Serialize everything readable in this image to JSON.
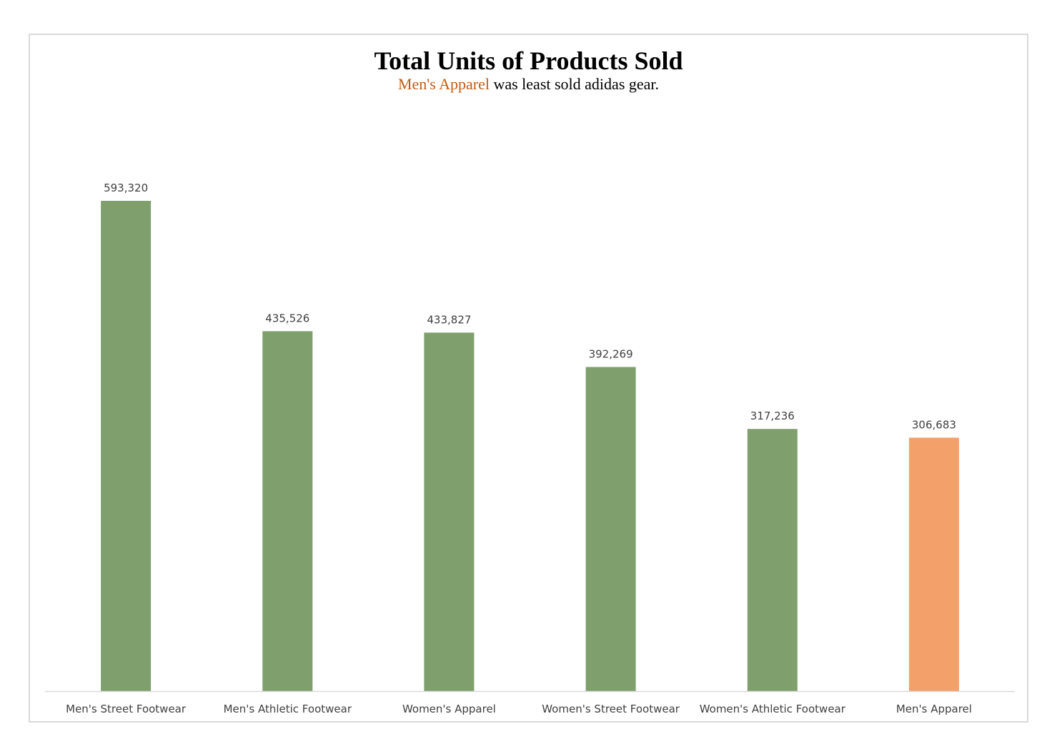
{
  "chart_data": {
    "type": "bar",
    "title": "Total Units of Products Sold",
    "subtitle": {
      "highlight": "Men's Apparel",
      "rest": " was least sold adidas gear."
    },
    "categories": [
      "Men's Street Footwear",
      "Men's Athletic Footwear",
      "Women's Apparel",
      "Women's Street Footwear",
      "Women's Athletic Footwear",
      "Men's Apparel"
    ],
    "values": [
      593320,
      435526,
      433827,
      392269,
      317236,
      306683
    ],
    "value_labels": [
      "593,320",
      "435,526",
      "433,827",
      "392,269",
      "317,236",
      "306,683"
    ],
    "highlight_index": 5,
    "ylim": [
      0,
      600000
    ],
    "xlabel": "",
    "ylabel": "",
    "grid": false,
    "legend": "none",
    "colors": {
      "bar": "#7fa06c",
      "highlight_bar": "#f4a06a",
      "highlight_text": "#c55a11",
      "axis": "#d9d9d9"
    }
  }
}
